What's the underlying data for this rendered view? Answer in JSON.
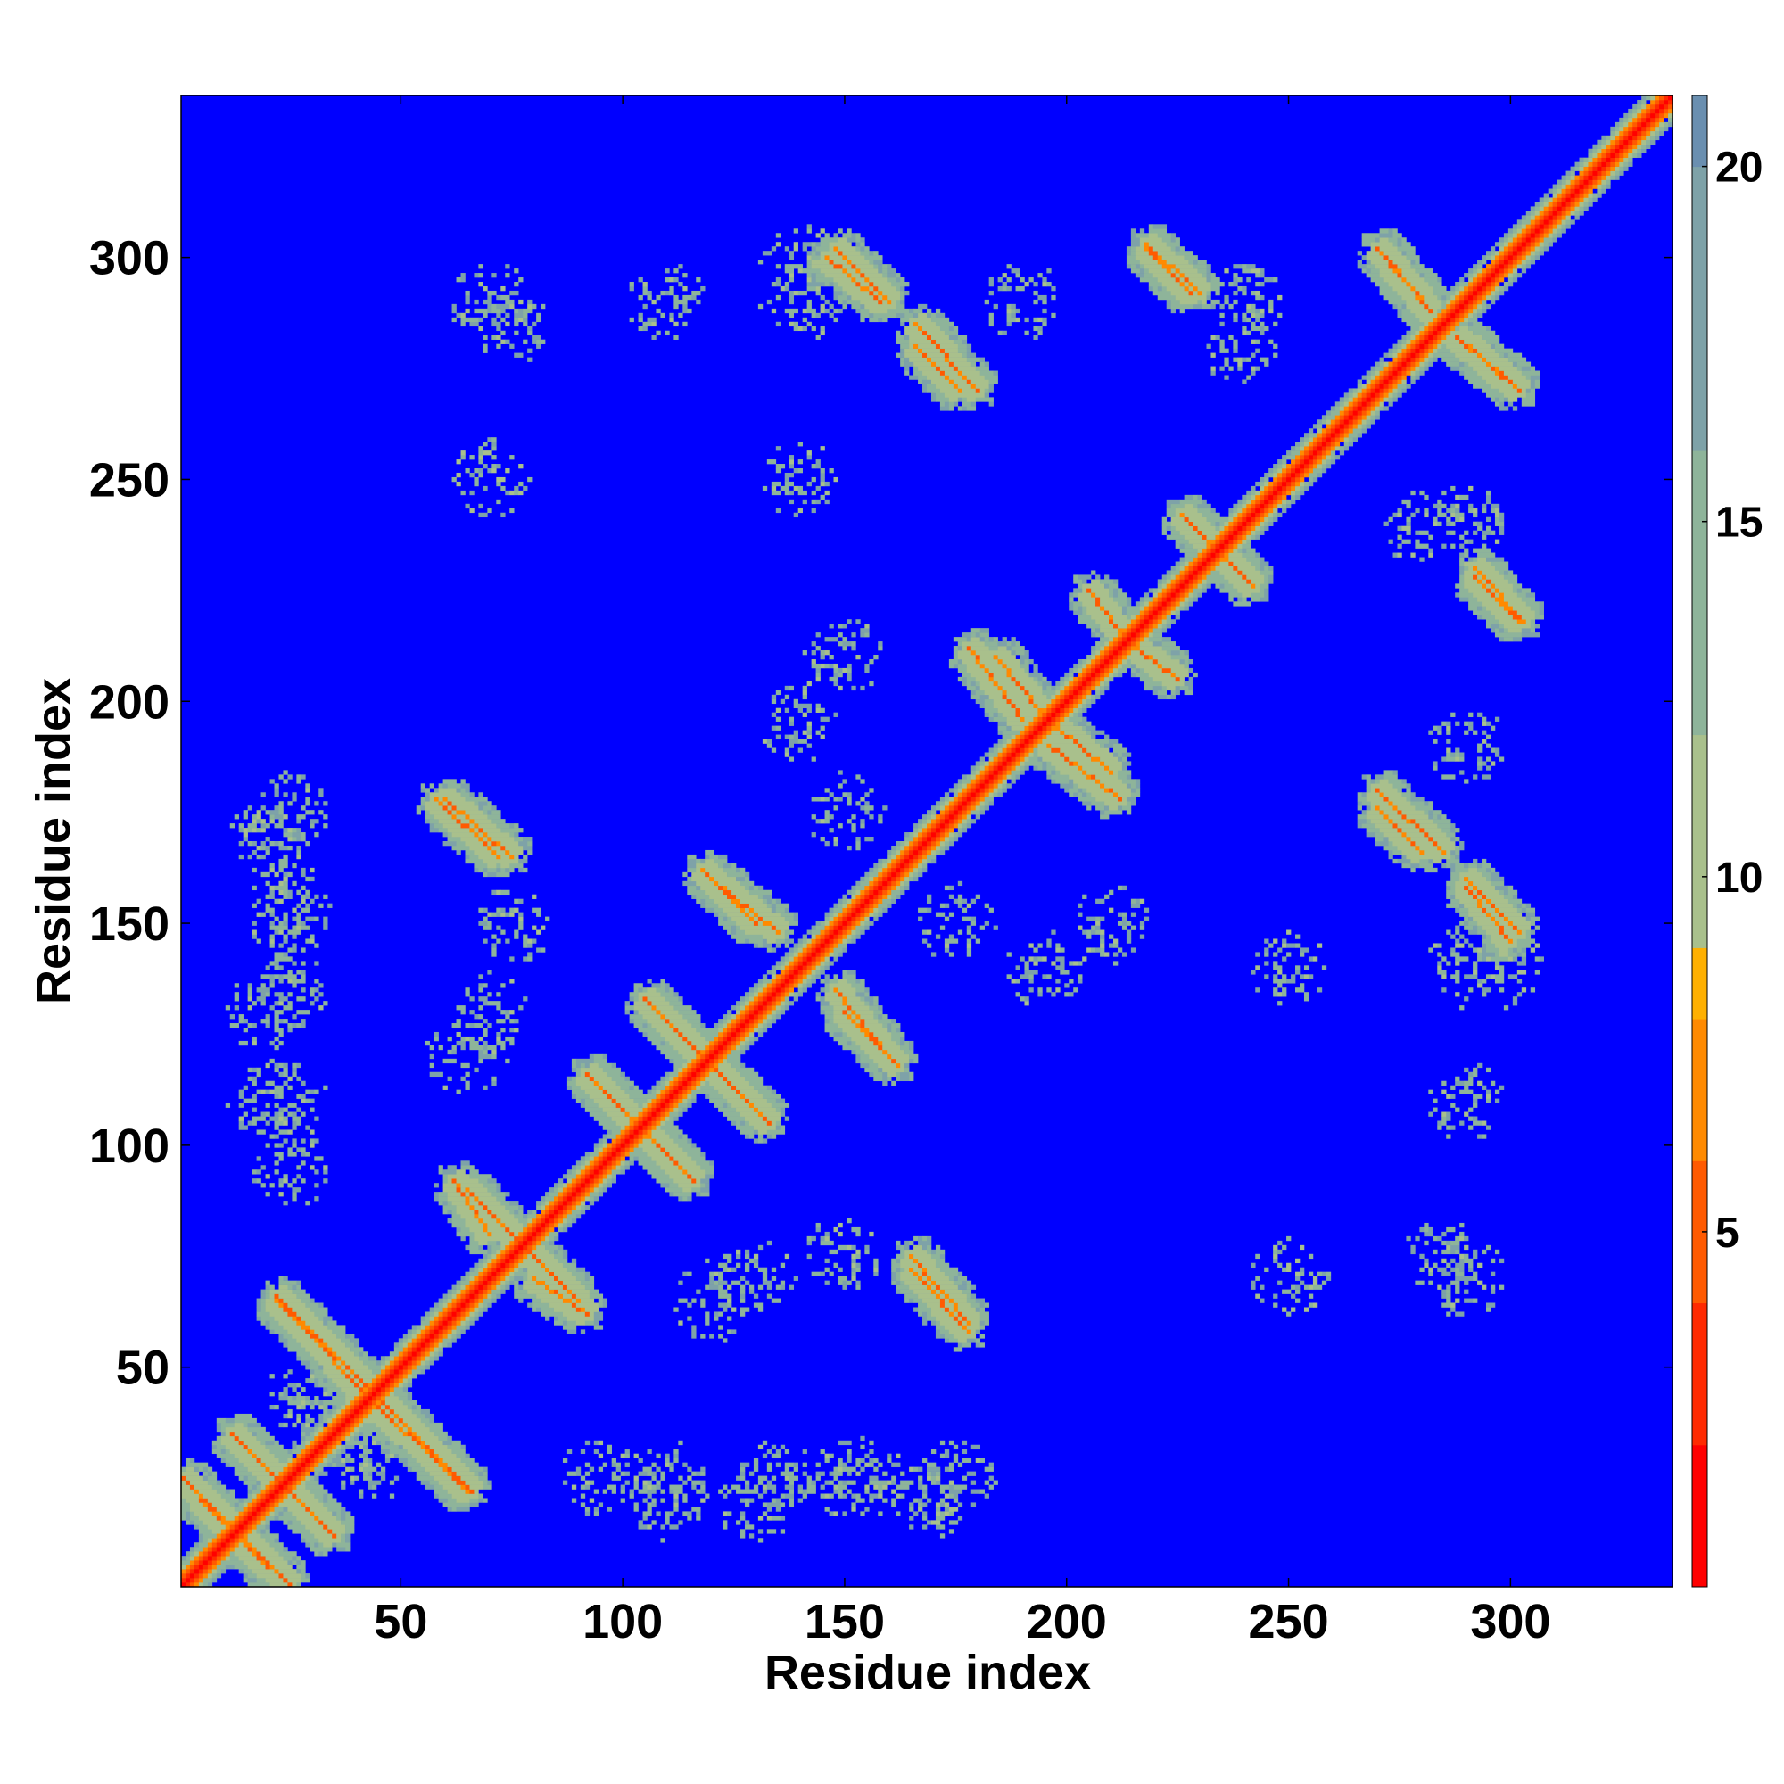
{
  "chart_data": {
    "type": "heatmap",
    "title": "",
    "xlabel": "Residue index",
    "ylabel": "Residue index",
    "xlim": [
      1,
      336
    ],
    "ylim": [
      1,
      336
    ],
    "x_ticks": [
      50,
      100,
      150,
      200,
      250,
      300
    ],
    "y_ticks": [
      50,
      100,
      150,
      200,
      250,
      300
    ],
    "colorbar": {
      "range": [
        0,
        21
      ],
      "ticks": [
        5,
        10,
        15,
        20
      ],
      "stops": [
        {
          "value": 0,
          "color": "#ff0000"
        },
        {
          "value": 2,
          "color": "#ff2a00"
        },
        {
          "value": 4,
          "color": "#ff5a00"
        },
        {
          "value": 6,
          "color": "#ff8a00"
        },
        {
          "value": 8,
          "color": "#ffb000"
        },
        {
          "value": 8.01,
          "color": "#a9c08c"
        },
        {
          "value": 12,
          "color": "#8eb49a"
        },
        {
          "value": 16,
          "color": "#7ea2a8"
        },
        {
          "value": 20,
          "color": "#6a8fb0"
        },
        {
          "value": 20.01,
          "color": "#0000ff"
        },
        {
          "value": 21,
          "color": "#0000ff"
        }
      ]
    },
    "background_value": 21,
    "structure": {
      "diagonal": {
        "from": 1,
        "to": 336
      },
      "antiparallel_stripes": [
        {
          "x": [
            5,
            25
          ],
          "y": [
            20,
            1
          ]
        },
        {
          "x": [
            22,
            48
          ],
          "y": [
            65,
            38
          ]
        },
        {
          "x": [
            40,
            66
          ],
          "y": [
            48,
            22
          ]
        },
        {
          "x": [
            12,
            35
          ],
          "y": [
            35,
            12
          ]
        },
        {
          "x": [
            60,
            75
          ],
          "y": [
            178,
            165
          ]
        },
        {
          "x": [
            65,
            80
          ],
          "y": [
            90,
            75
          ]
        },
        {
          "x": [
            80,
            92
          ],
          "y": [
            70,
            62
          ]
        },
        {
          "x": [
            92,
            116
          ],
          "y": [
            116,
            92
          ]
        },
        {
          "x": [
            105,
            130
          ],
          "y": [
            133,
            108
          ]
        },
        {
          "x": [
            120,
            135
          ],
          "y": [
            160,
            148
          ]
        },
        {
          "x": [
            150,
            162
          ],
          "y": [
            130,
            118
          ]
        },
        {
          "x": [
            148,
            160
          ],
          "y": [
            302,
            290
          ]
        },
        {
          "x": [
            165,
            178
          ],
          "y": [
            72,
            58
          ]
        },
        {
          "x": [
            166,
            176
          ],
          "y": [
            280,
            270
          ]
        },
        {
          "x": [
            184,
            194
          ],
          "y": [
            210,
            198
          ]
        },
        {
          "x": [
            196,
            212
          ],
          "y": [
            190,
            178
          ]
        },
        {
          "x": [
            205,
            215
          ],
          "y": [
            225,
            212
          ]
        },
        {
          "x": [
            218,
            228
          ],
          "y": [
            302,
            292
          ]
        },
        {
          "x": [
            226,
            242
          ],
          "y": [
            242,
            226
          ]
        },
        {
          "x": [
            270,
            285
          ],
          "y": [
            180,
            166
          ]
        },
        {
          "x": [
            272,
            282
          ],
          "y": [
            300,
            288
          ]
        },
        {
          "x": [
            290,
            300
          ],
          "y": [
            158,
            146
          ]
        },
        {
          "x": [
            288,
            302
          ],
          "y": [
            282,
            270
          ]
        },
        {
          "x": [
            292,
            303
          ],
          "y": [
            230,
            218
          ]
        }
      ],
      "contact_clusters": [
        {
          "x": 30,
          "y": 40
        },
        {
          "x": 45,
          "y": 30
        },
        {
          "x": 70,
          "y": 290
        },
        {
          "x": 110,
          "y": 290
        },
        {
          "x": 140,
          "y": 290
        },
        {
          "x": 190,
          "y": 290
        },
        {
          "x": 240,
          "y": 290
        },
        {
          "x": 70,
          "y": 130
        },
        {
          "x": 75,
          "y": 150
        },
        {
          "x": 120,
          "y": 65
        },
        {
          "x": 150,
          "y": 175
        },
        {
          "x": 210,
          "y": 150
        },
        {
          "x": 250,
          "y": 140
        },
        {
          "x": 285,
          "y": 75
        },
        {
          "x": 250,
          "y": 70
        },
        {
          "x": 280,
          "y": 240
        },
        {
          "x": 300,
          "y": 140
        },
        {
          "x": 20,
          "y": 170
        },
        {
          "x": 25,
          "y": 150
        },
        {
          "x": 20,
          "y": 130
        },
        {
          "x": 20,
          "y": 110
        },
        {
          "x": 110,
          "y": 25
        },
        {
          "x": 135,
          "y": 25
        },
        {
          "x": 155,
          "y": 25
        },
        {
          "x": 175,
          "y": 25
        },
        {
          "x": 95,
          "y": 25
        },
        {
          "x": 195,
          "y": 140
        }
      ]
    }
  }
}
